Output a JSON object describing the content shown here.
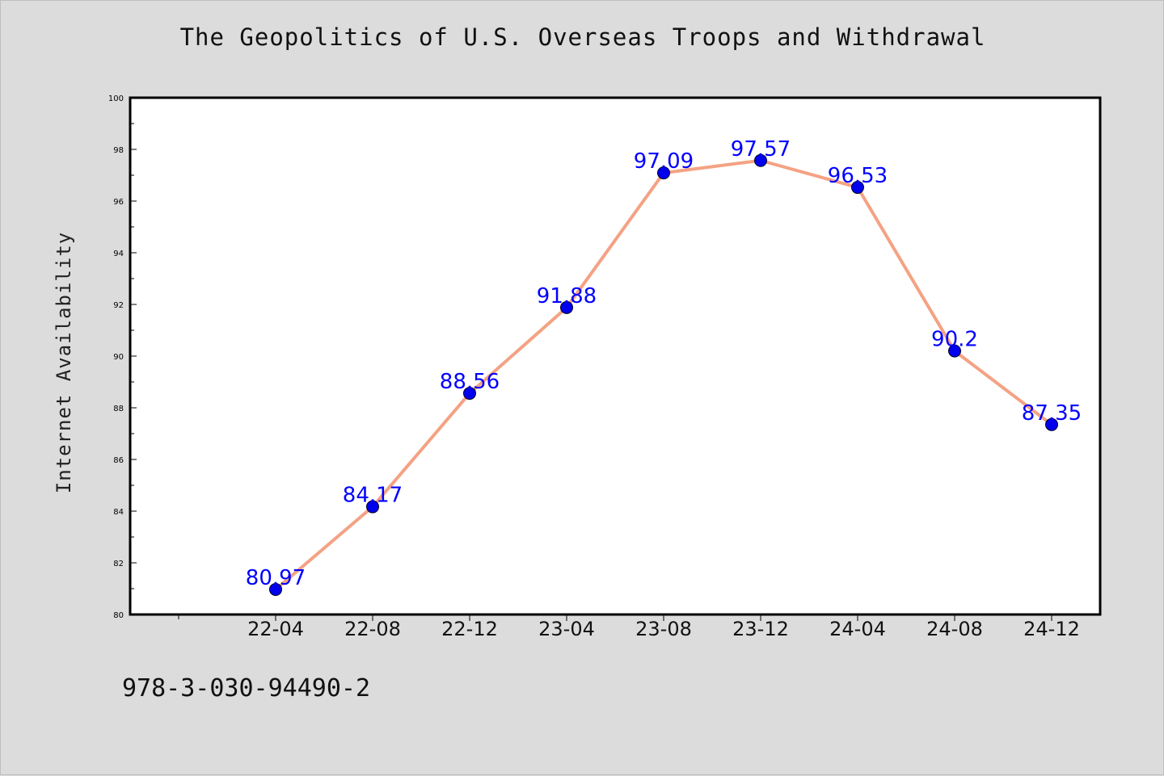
{
  "footer": {
    "code": "978-3-030-94490-2"
  },
  "chart_data": {
    "type": "line",
    "title": "The Geopolitics of U.S. Overseas Troops and Withdrawal",
    "xlabel": "",
    "ylabel": "Internet Availability",
    "categories": [
      "22-04",
      "22-08",
      "22-12",
      "23-04",
      "23-08",
      "23-12",
      "24-04",
      "24-08",
      "24-12"
    ],
    "series": [
      {
        "values": [
          80.97,
          84.17,
          88.56,
          91.88,
          97.09,
          97.57,
          96.53,
          90.2,
          87.35
        ],
        "data_labels": [
          "80.97",
          "84.17",
          "88.56",
          "91.88",
          "97.09",
          "97.57",
          "96.53",
          "90.2",
          "87.35"
        ]
      }
    ],
    "ylim": [
      80,
      100
    ],
    "yticks": [
      "80",
      "82",
      "84",
      "86",
      "88",
      "90",
      "92",
      "94",
      "96",
      "98",
      "100"
    ],
    "grid": false,
    "legend": "none",
    "colors": {
      "line": "#f4a284",
      "marker": "#0000ee",
      "data_label": "#0000ff",
      "plot_background": "#ffffff",
      "figure_background": "#dcdcdc"
    }
  }
}
